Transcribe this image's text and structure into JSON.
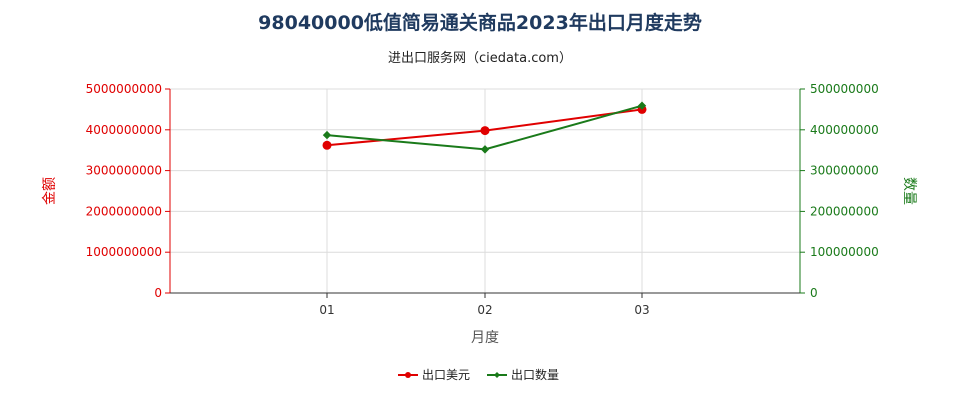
{
  "chart_data": {
    "type": "line",
    "title": "98040000低值简易通关商品2023年出口月度走势",
    "subtitle": "进出口服务网（ciedata.com）",
    "xlabel": "月度",
    "ylabel_left": "金额",
    "ylabel_right": "数量",
    "categories": [
      "01",
      "02",
      "03"
    ],
    "ylim_left": [
      0,
      5000000000
    ],
    "ylim_right": [
      0,
      500000000
    ],
    "yticks_left": [
      "0",
      "1000000000",
      "2000000000",
      "3000000000",
      "4000000000",
      "5000000000"
    ],
    "yticks_right": [
      "0",
      "100000000",
      "200000000",
      "300000000",
      "400000000",
      "500000000"
    ],
    "grid": true,
    "legend_position": "bottom",
    "series": [
      {
        "name": "出口美元",
        "axis": "left",
        "color": "#e00000",
        "values": [
          3620000000,
          3980000000,
          4500000000
        ]
      },
      {
        "name": "出口数量",
        "axis": "right",
        "color": "#1a7a1a",
        "values": [
          387000000,
          352000000,
          459000000
        ]
      }
    ]
  }
}
